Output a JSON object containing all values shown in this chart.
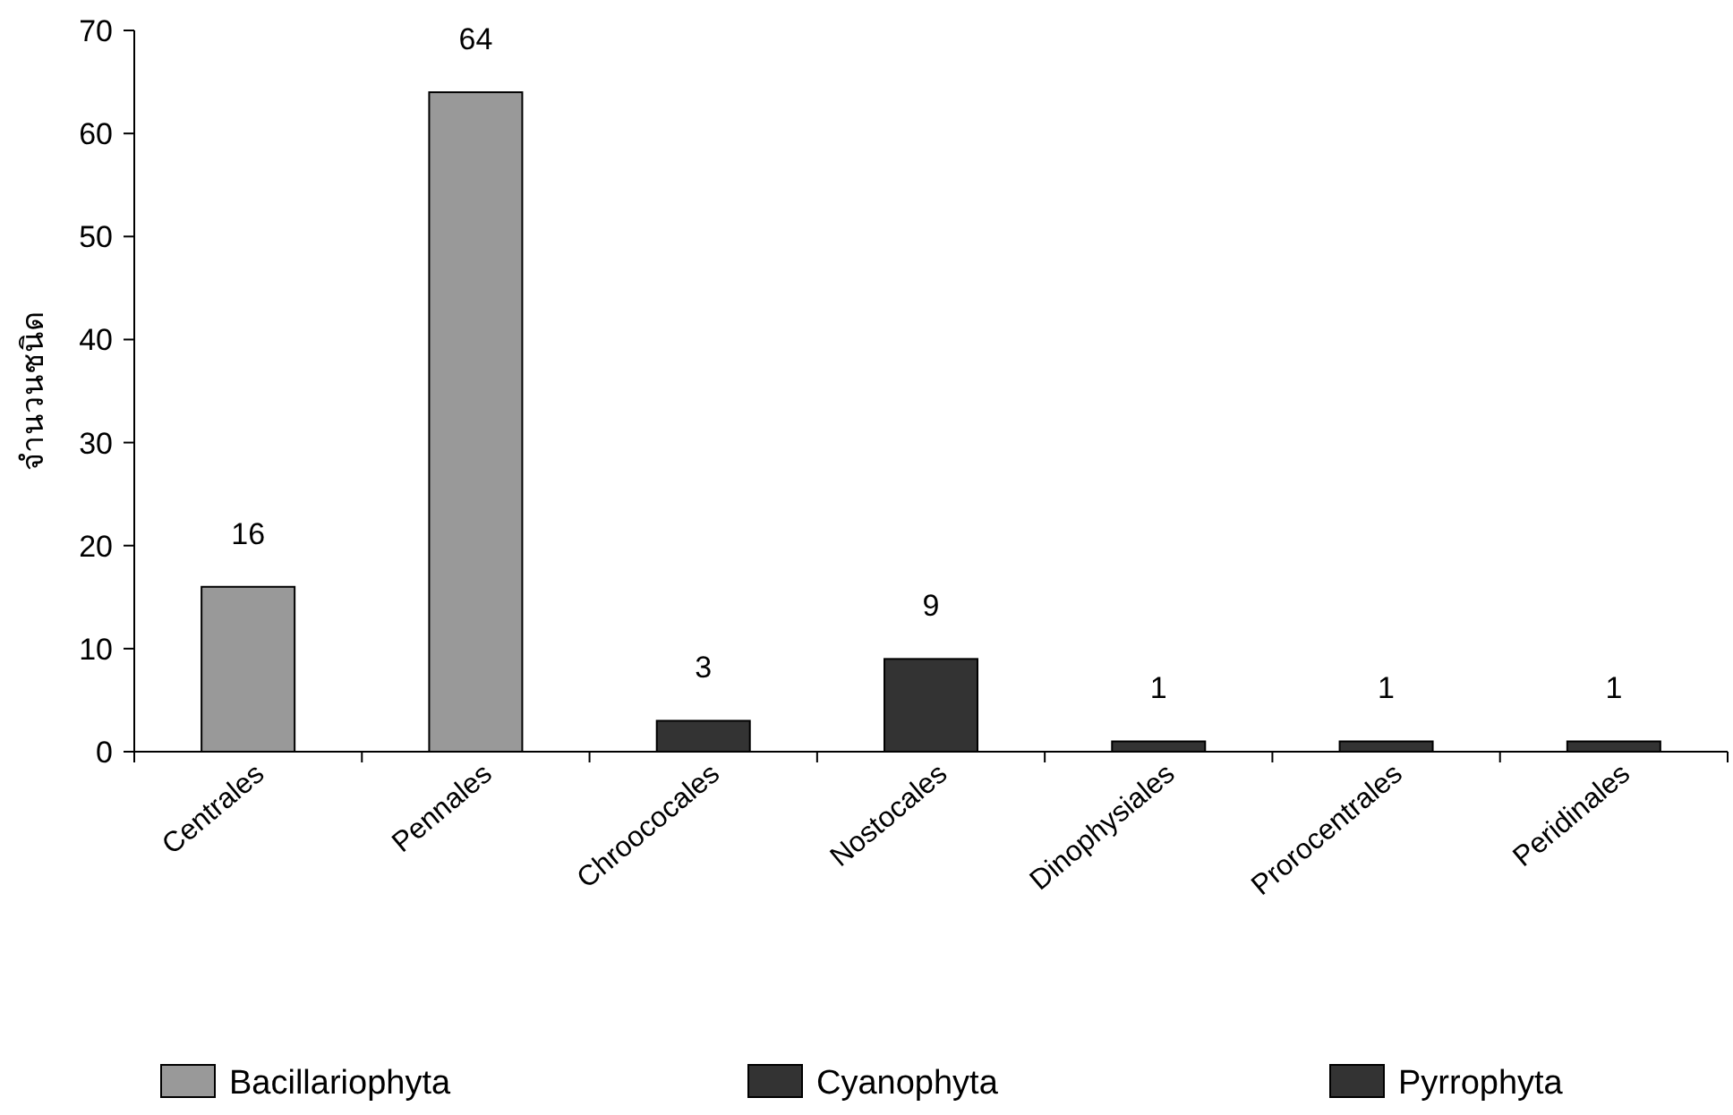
{
  "chart_data": {
    "type": "bar",
    "ylabel": "จำนวนชนิด",
    "categories": [
      "Centrales",
      "Pennales",
      "Chroococales",
      "Nostocales",
      "Dinophysiales",
      "Prorocentrales",
      "Peridinales"
    ],
    "series": [
      {
        "name": "Bacillariophyta",
        "color": "#999999",
        "values": [
          16,
          64,
          null,
          null,
          null,
          null,
          null
        ]
      },
      {
        "name": "Cyanophyta",
        "color": "#333333",
        "values": [
          null,
          null,
          3,
          9,
          null,
          null,
          null
        ]
      },
      {
        "name": "Pyrrophyta",
        "color": "#333333",
        "values": [
          null,
          null,
          null,
          null,
          1,
          1,
          1
        ]
      }
    ],
    "stacked": true,
    "ylim": [
      0,
      70
    ],
    "yticks": [
      0,
      10,
      20,
      30,
      40,
      50,
      60,
      70
    ],
    "data_labels": true,
    "legend": "bottom"
  }
}
